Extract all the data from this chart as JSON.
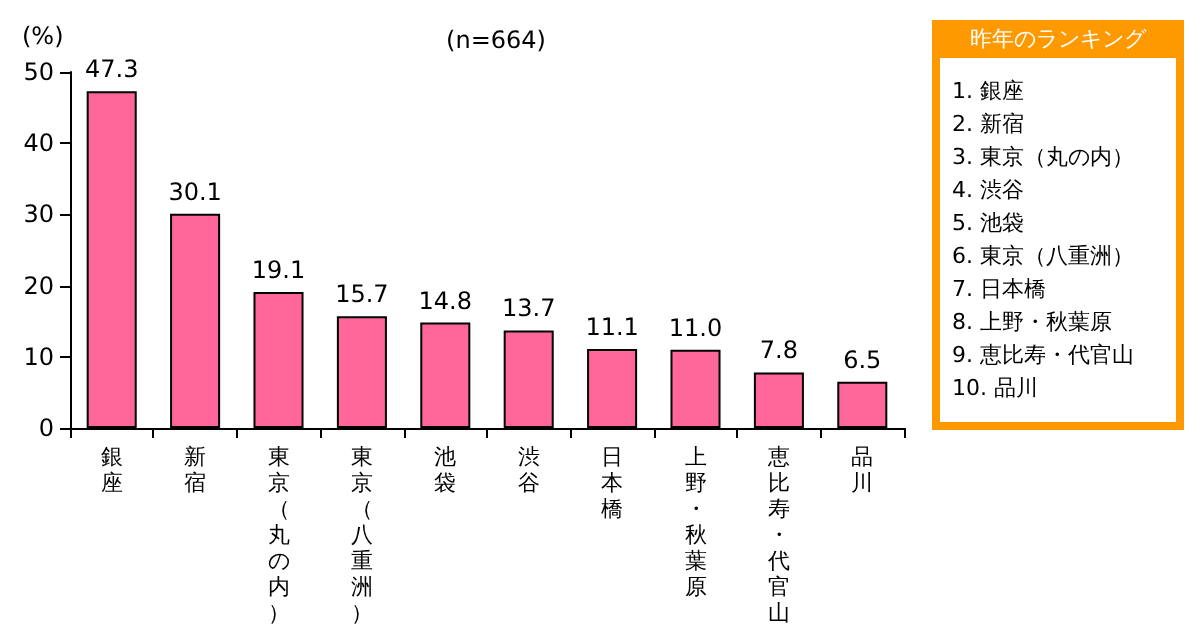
{
  "chart_data": {
    "type": "bar",
    "subtitle": "(n=664)",
    "ylabel": "(%)",
    "categories": [
      "銀座",
      "新宿",
      "東京（丸の内）",
      "東京（八重洲）",
      "池袋",
      "渋谷",
      "日本橋",
      "上野・秋葉原",
      "恵比寿・代官山",
      "品川"
    ],
    "values": [
      47.3,
      30.1,
      19.1,
      15.7,
      14.8,
      13.7,
      11.1,
      11.0,
      7.8,
      6.5
    ],
    "color": "#ff6699",
    "value_labels": [
      "47.3",
      "30.1",
      "19.1",
      "15.7",
      "14.8",
      "13.7",
      "11.1",
      "11.0",
      "7.8",
      "6.5"
    ],
    "ylim": [
      0,
      50
    ],
    "yticks": [
      0,
      10,
      20,
      30,
      40,
      50
    ],
    "grid": false,
    "annotations": [
      "昨年のランキング",
      "1. 銀座",
      "2. 新宿",
      "3. 東京（丸の内）",
      "4. 渋谷",
      "5. 池袋",
      "6. 東京（八重洲）",
      "7. 日本橋",
      "8. 上野・秋葉原",
      "9. 恵比寿・代官山",
      "10. 品川"
    ]
  }
}
